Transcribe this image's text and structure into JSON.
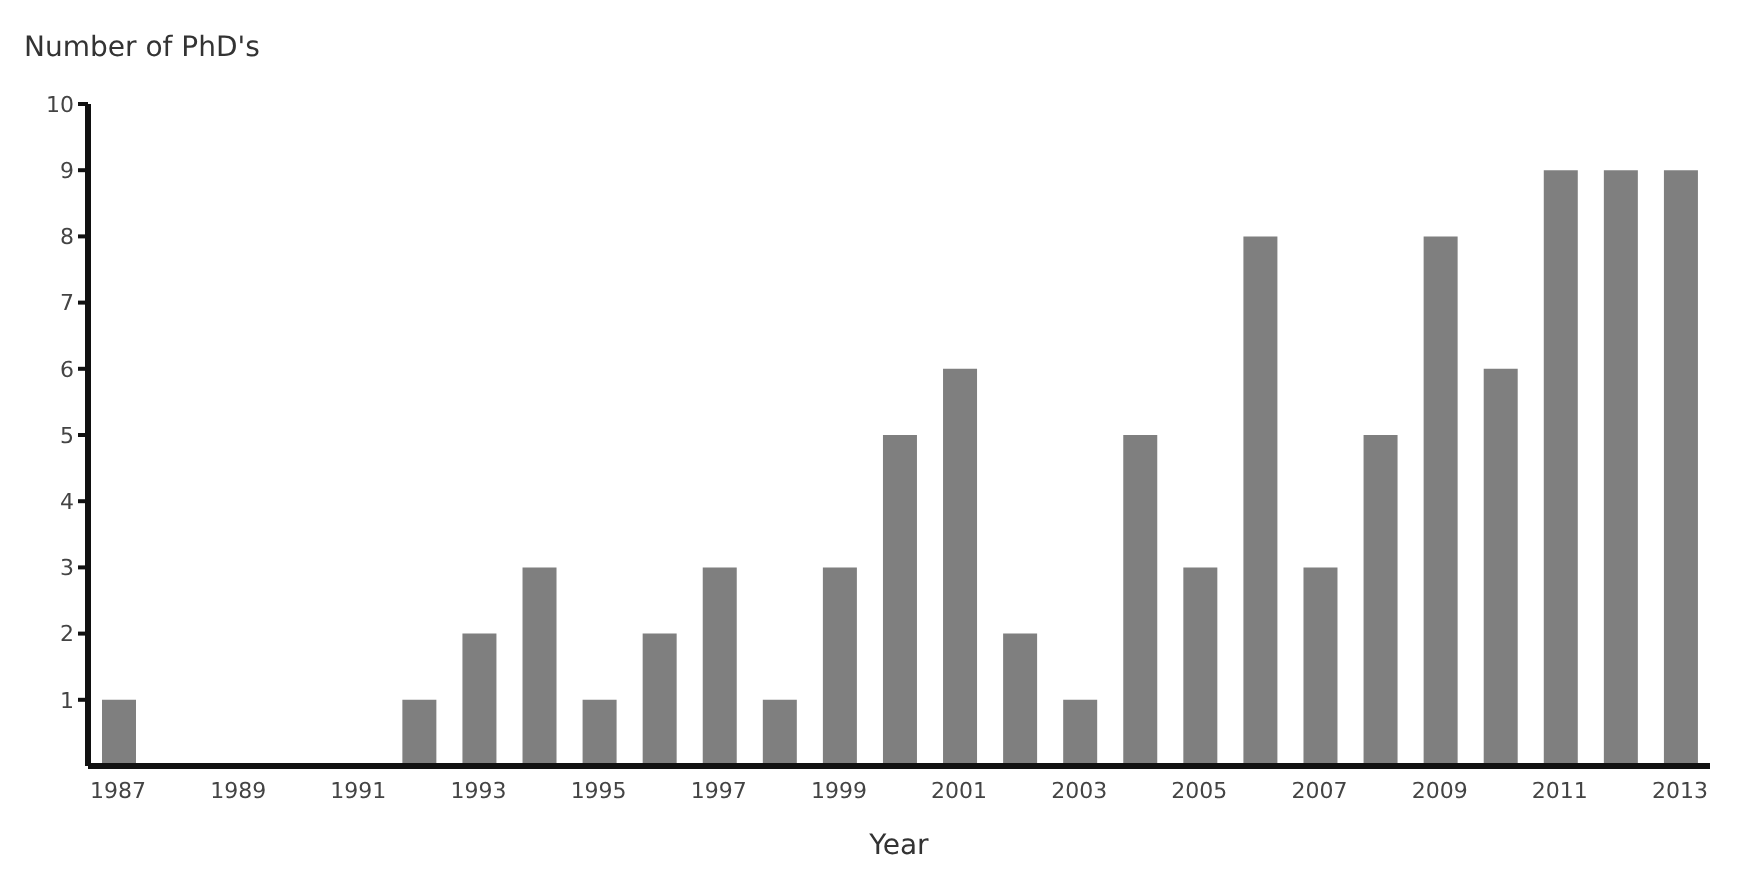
{
  "chart_data": {
    "type": "bar",
    "xlabel": "Year",
    "ylabel": "Number of PhD's",
    "categories": [
      "1987",
      null,
      "1989",
      null,
      "1991",
      null,
      "1993",
      null,
      "1995",
      null,
      "1997",
      null,
      "1999",
      null,
      "2001",
      null,
      "2003",
      null,
      "2005",
      null,
      "2007",
      null,
      "2009",
      null,
      "2011",
      null,
      "2013"
    ],
    "values": [
      1,
      0,
      0,
      0,
      0,
      1,
      2,
      3,
      1,
      2,
      3,
      1,
      3,
      5,
      6,
      2,
      1,
      5,
      3,
      8,
      3,
      5,
      8,
      6,
      9,
      9,
      9
    ],
    "color": "#7f7f7f",
    "ylim": [
      0,
      10
    ],
    "yticks": [
      1,
      2,
      3,
      4,
      5,
      6,
      7,
      8,
      9,
      10
    ],
    "grid": false
  }
}
